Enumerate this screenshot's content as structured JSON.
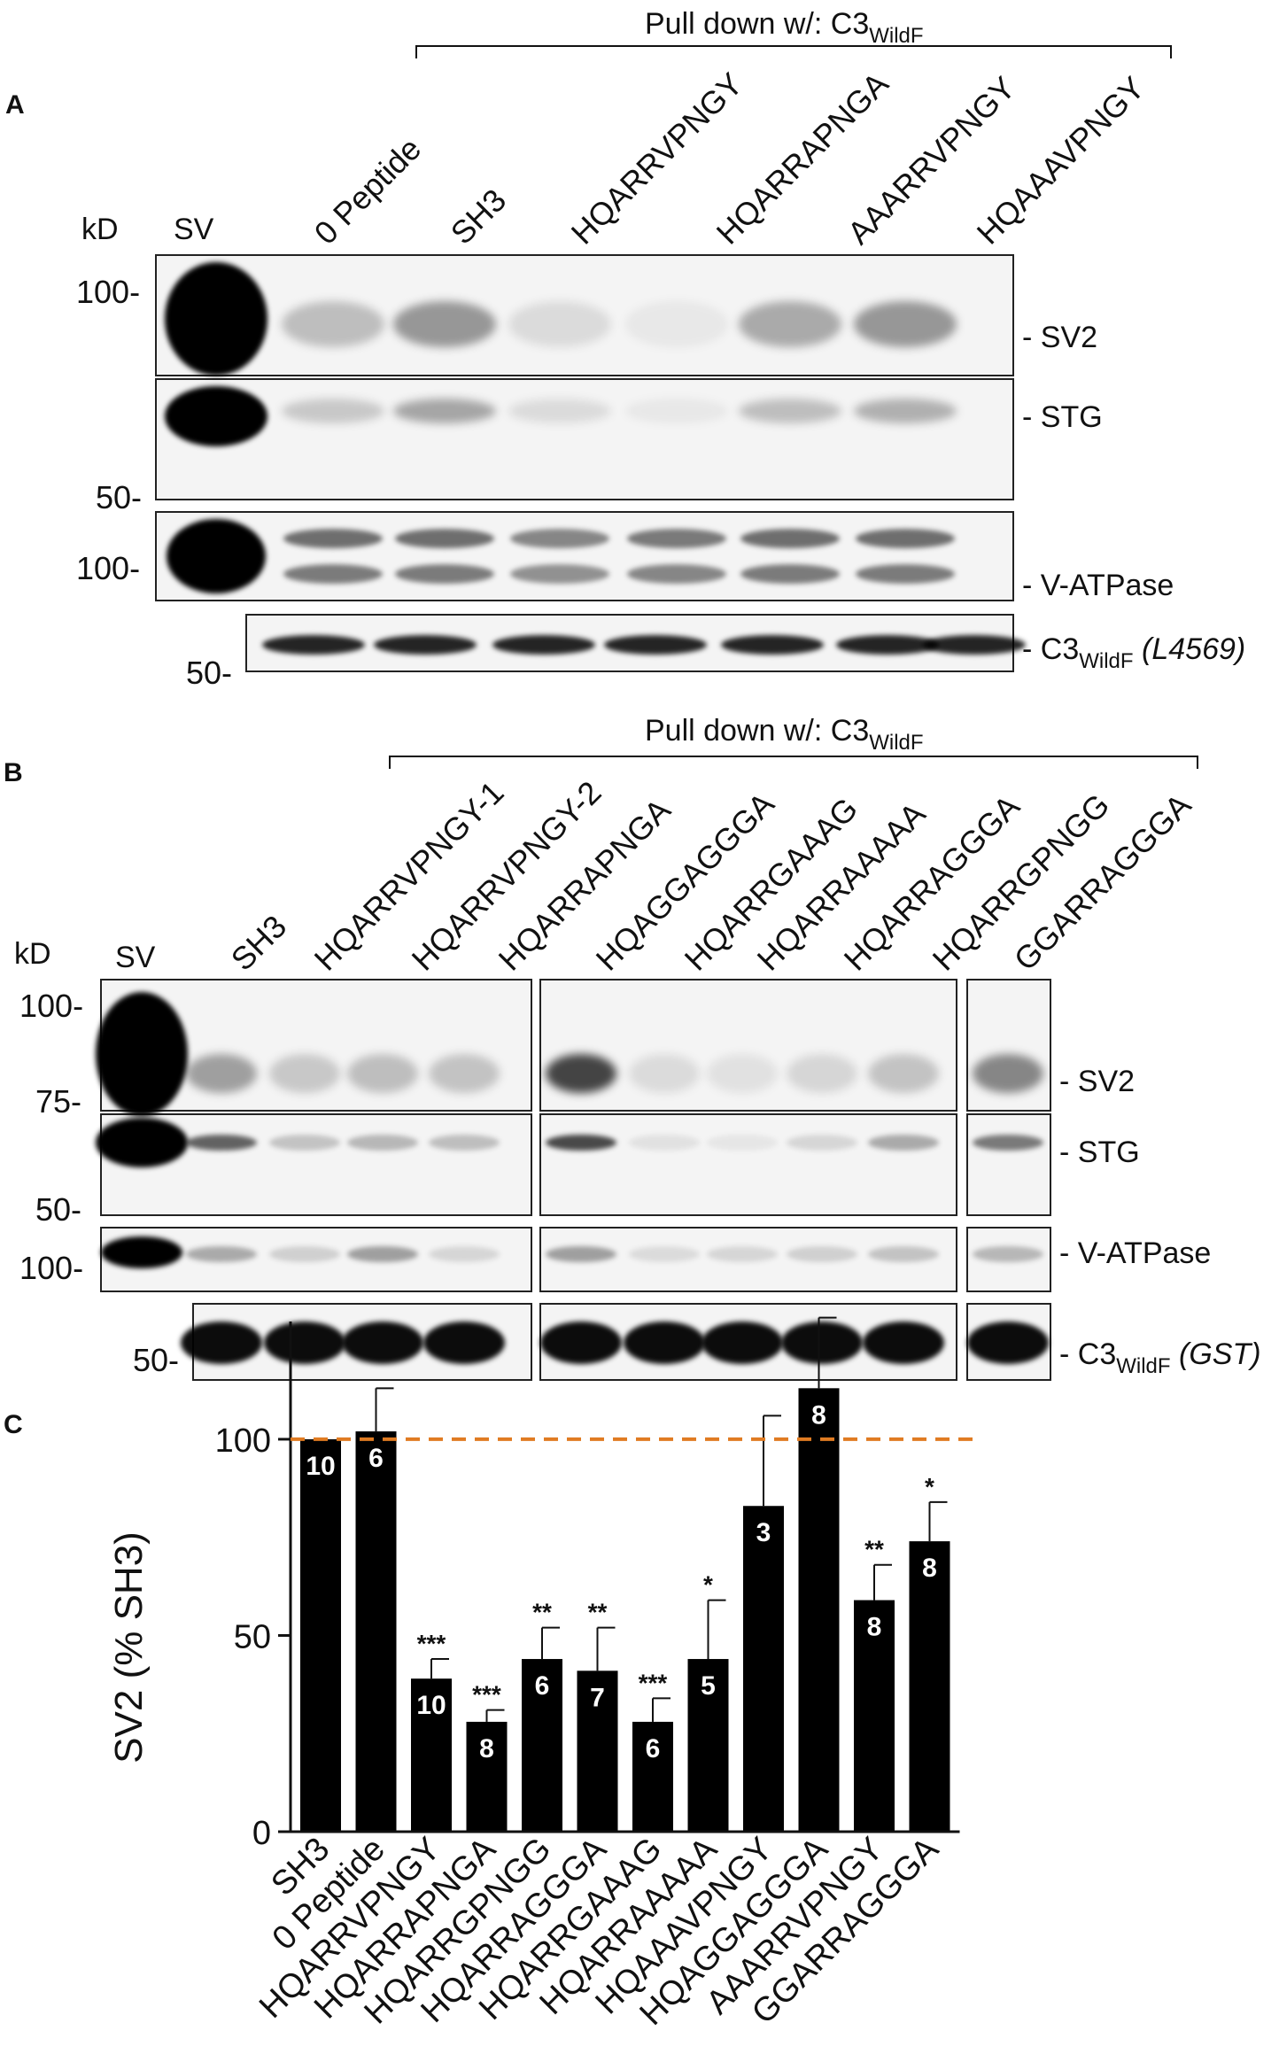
{
  "panel_a": {
    "letter": "A",
    "header": "Pull down w/: C3",
    "header_sub": "WildF",
    "kd_label": "kD",
    "lanes": [
      "SV",
      "0 Peptide",
      "SH3",
      "HQARRVPNGY",
      "HQARRAPNGA",
      "AAARRVPNGY",
      "HQAAAVPNGY"
    ],
    "markers": [
      "100-",
      "50-",
      "100-",
      "50-"
    ],
    "blots": [
      "- SV2",
      "- STG",
      "- V-ATPase"
    ],
    "c3_label": "- C3",
    "c3_sub": "WildF",
    "c3_tag": "(L4569)"
  },
  "panel_b": {
    "letter": "B",
    "header": "Pull down w/: C3",
    "header_sub": "WildF",
    "kd_label": "kD",
    "lanes": [
      "SV",
      "SH3",
      "HQARRVPNGY-1",
      "HQARRVPNGY-2",
      "HQARRAPNGA",
      "HQAGGAGGGA",
      "HQARRGAAAG",
      "HQARRAAAAA",
      "HQARRAGGGA",
      "HQARRGPNGG",
      "GGARRAGGGA"
    ],
    "markers": [
      "100-",
      "75-",
      "50-",
      "100-",
      "50-"
    ],
    "blots": [
      "- SV2",
      "- STG",
      "- V-ATPase"
    ],
    "c3_label": "- C3",
    "c3_sub": "WildF",
    "c3_tag": "(GST)"
  },
  "panel_c": {
    "letter": "C",
    "chart_data": {
      "type": "bar",
      "ylabel": "SV2 (% SH3)",
      "ylim": [
        0,
        130
      ],
      "yticks": [
        "0",
        "50",
        "100"
      ],
      "reference_line": 100,
      "reference_color": "#e07b22",
      "bar_color": "#000000",
      "categories": [
        "SH3",
        "0 Peptide",
        "HQARRVPNGY",
        "HQARRAPNGA",
        "HQARRGPNGG",
        "HQARRAGGGA",
        "HQARRGAAAG",
        "HQARRAAAAA",
        "HQAAAVPNGY",
        "HQAGGAGGGA",
        "AAARRVPNGY",
        "GGARRAGGGA"
      ],
      "values": [
        100,
        102,
        39,
        28,
        44,
        41,
        28,
        44,
        83,
        113,
        59,
        74
      ],
      "errors": [
        0,
        11,
        5,
        3,
        8,
        11,
        6,
        15,
        23,
        18,
        9,
        10
      ],
      "n_labels": [
        "10",
        "6",
        "10",
        "8",
        "6",
        "7",
        "6",
        "5",
        "3",
        "8",
        "8",
        "8"
      ],
      "significance": [
        "",
        "",
        "***",
        "***",
        "**",
        "**",
        "***",
        "*",
        "",
        "",
        "**",
        "*"
      ]
    }
  }
}
